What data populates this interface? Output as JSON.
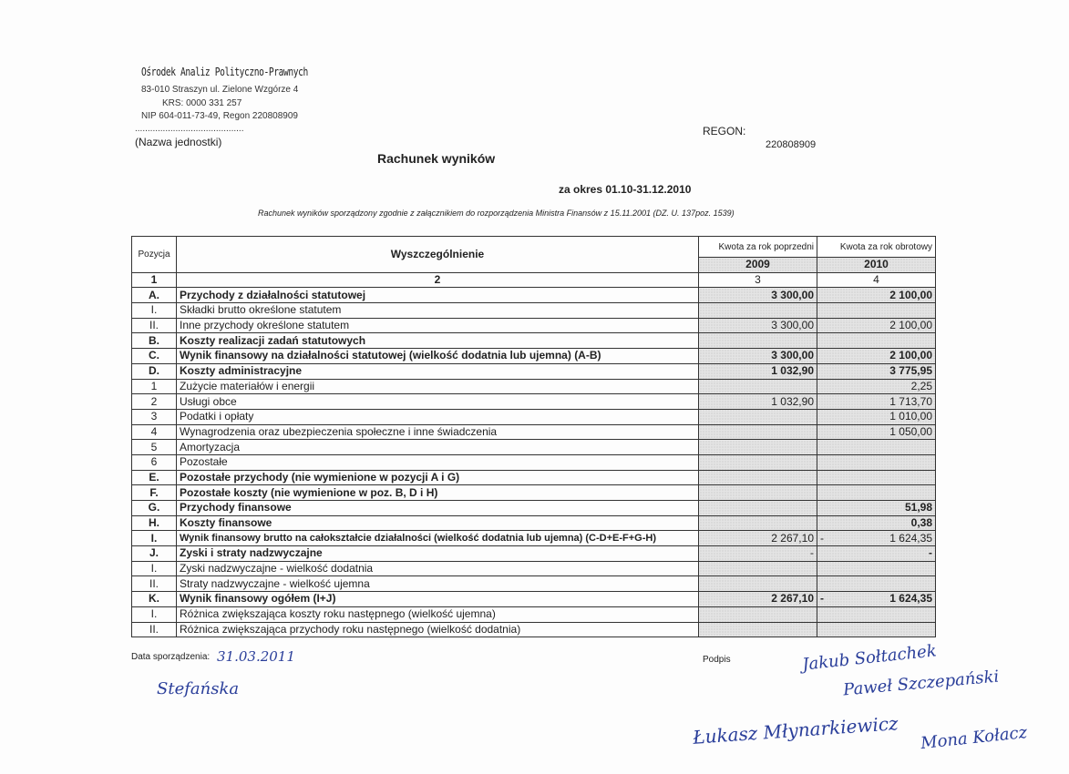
{
  "org": {
    "name": "Ośrodek Analiz Polityczno-Prawnych",
    "address": "83-010 Straszyn ul. Zielone Wzgórze 4",
    "krs": "KRS: 0000 331 257",
    "nip": "NIP 604-011-73-49, Regon 220808909",
    "dots": "...........................................",
    "unit_label": "(Nazwa jednostki)"
  },
  "regon": {
    "label": "REGON:",
    "value": "220808909"
  },
  "title": "Rachunek wyników",
  "period": "za okres 01.10-31.12.2010",
  "note": "Rachunek wyników sporządzony zgodnie z załącznikiem do rozporządzenia Ministra Finansów z 15.11.2001 (DZ. U. 137poz. 1539)",
  "table": {
    "headers": {
      "pos": "Pozycja",
      "desc": "Wyszczególnienie",
      "prev": "Kwota za rok poprzedni",
      "curr": "Kwota za rok obrotowy",
      "prev_year": "2009",
      "curr_year": "2010",
      "n1": "1",
      "n2": "2",
      "n3": "3",
      "n4": "4"
    },
    "rows": [
      {
        "pos": "A.",
        "desc": "Przychody z działalności statutowej",
        "prev": "3 300,00",
        "curr": "2 100,00",
        "bold": true
      },
      {
        "pos": "I.",
        "desc": "Składki brutto określone statutem",
        "prev": "",
        "curr": ""
      },
      {
        "pos": "II.",
        "desc": "Inne przychody określone statutem",
        "prev": "3 300,00",
        "curr": "2 100,00"
      },
      {
        "pos": "B.",
        "desc": "Koszty realizacji zadań statutowych",
        "prev": "",
        "curr": "",
        "bold": true
      },
      {
        "pos": "C.",
        "desc": "Wynik finansowy na działalności statutowej (wielkość dodatnia lub ujemna) (A-B)",
        "prev": "3 300,00",
        "curr": "2 100,00",
        "bold": true
      },
      {
        "pos": "D.",
        "desc": "Koszty administracyjne",
        "prev": "1 032,90",
        "curr": "3 775,95",
        "bold": true
      },
      {
        "pos": "1",
        "desc": "Zużycie materiałów i energii",
        "prev": "",
        "curr": "2,25"
      },
      {
        "pos": "2",
        "desc": "Usługi obce",
        "prev": "1 032,90",
        "curr": "1 713,70"
      },
      {
        "pos": "3",
        "desc": "Podatki i opłaty",
        "prev": "",
        "curr": "1 010,00"
      },
      {
        "pos": "4",
        "desc": "Wynagrodzenia oraz ubezpieczenia społeczne i inne świadczenia",
        "prev": "",
        "curr": "1 050,00"
      },
      {
        "pos": "5",
        "desc": "Amortyzacja",
        "prev": "",
        "curr": ""
      },
      {
        "pos": "6",
        "desc": "Pozostałe",
        "prev": "",
        "curr": ""
      },
      {
        "pos": "E.",
        "desc": "Pozostałe przychody (nie wymienione w pozycji A i G)",
        "prev": "",
        "curr": "",
        "bold": true
      },
      {
        "pos": "F.",
        "desc": "Pozostałe koszty (nie wymienione w poz. B, D i H)",
        "prev": "",
        "curr": "",
        "bold": true
      },
      {
        "pos": "G.",
        "desc": "Przychody finansowe",
        "prev": "",
        "curr": "51,98",
        "bold": true
      },
      {
        "pos": "H.",
        "desc": "Koszty finansowe",
        "prev": "",
        "curr": "0,38",
        "bold": true
      },
      {
        "pos": "I.",
        "desc": "Wynik finansowy brutto na całokształcie działalności (wielkość dodatnia lub ujemna) (C-D+E-F+G-H)",
        "prev": "2 267,10",
        "curr": "1 624,35",
        "curr_sign": "-",
        "bold": true,
        "small": true
      },
      {
        "pos": "J.",
        "desc": "Zyski i straty nadzwyczajne",
        "prev": "-",
        "curr": "-",
        "bold": true
      },
      {
        "pos": "I.",
        "desc": "Zyski nadzwyczajne - wielkość dodatnia",
        "prev": "",
        "curr": ""
      },
      {
        "pos": "II.",
        "desc": "Straty nadzwyczajne - wielkość ujemna",
        "prev": "",
        "curr": ""
      },
      {
        "pos": "K.",
        "desc": "Wynik finansowy ogółem (I+J)",
        "prev": "2 267,10",
        "curr": "1 624,35",
        "curr_sign": "-",
        "bold": true
      },
      {
        "pos": "I.",
        "desc": "Różnica zwiększająca koszty roku następnego (wielkość ujemna)",
        "prev": "",
        "curr": ""
      },
      {
        "pos": "II.",
        "desc": "Różnica zwiększająca przychody roku następnego (wielkość dodatnia)",
        "prev": "",
        "curr": ""
      }
    ]
  },
  "footer": {
    "date_label": "Data sporządzenia:",
    "date_value": "31.03.2011",
    "preparer_signature": "Stefańska",
    "sign_label": "Podpis",
    "signatures": [
      "Jakub Sołtachek",
      "Paweł Szczepański",
      "Łukasz Młynarkiewicz",
      "Mona Kołacz"
    ]
  }
}
